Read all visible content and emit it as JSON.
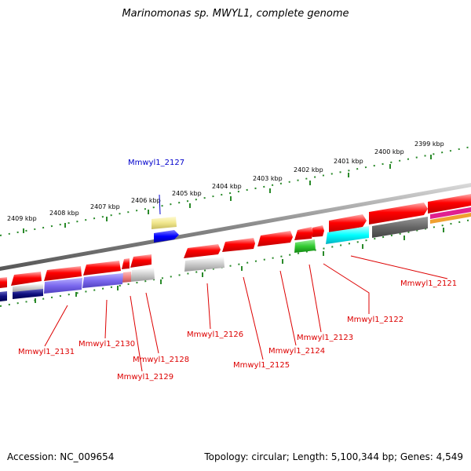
{
  "title": "Marinomonas sp. MWYL1, complete genome",
  "footer": {
    "accession": "Accession: NC_009654",
    "topology": "Topology: circular; Length: 5,100,344 bp; Genes: 4,549"
  },
  "colors": {
    "backbone": "#888888",
    "ticks": "#2a8a2a",
    "cds_red": "#ff0000",
    "label_red": "#dd0000",
    "label_blue": "#0000cc"
  },
  "kbp_labels": [
    "2409 kbp",
    "2408 kbp",
    "2407 kbp",
    "2406 kbp",
    "2405 kbp",
    "2404 kbp",
    "2403 kbp",
    "2402 kbp",
    "2401 kbp",
    "2400 kbp",
    "2399 kbp"
  ],
  "gene_labels": [
    {
      "text": "Mmwyl1_2127"
    },
    {
      "text": "Mmwyl1_2121"
    },
    {
      "text": "Mmwyl1_2122"
    },
    {
      "text": "Mmwyl1_2123"
    },
    {
      "text": "Mmwyl1_2124"
    },
    {
      "text": "Mmwyl1_2125"
    },
    {
      "text": "Mmwyl1_2126"
    },
    {
      "text": "Mmwyl1_2128"
    },
    {
      "text": "Mmwyl1_2129"
    },
    {
      "text": "Mmwyl1_2130"
    },
    {
      "text": "Mmwyl1_2131"
    }
  ]
}
